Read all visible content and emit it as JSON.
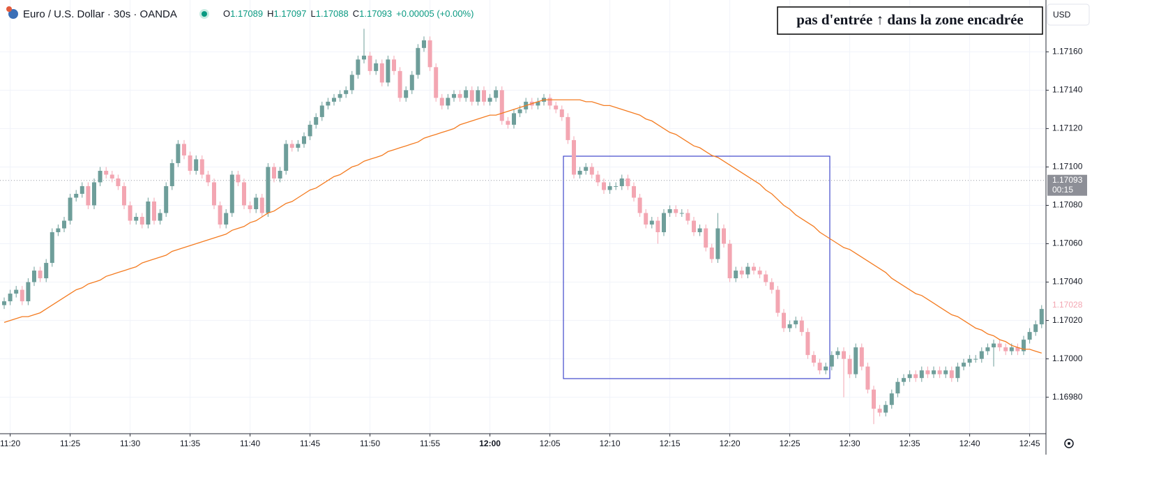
{
  "chart_data": {
    "type": "candlestick",
    "title": "Euro / U.S. Dollar · 30s · OANDA",
    "readout": [
      {
        "key": "O",
        "value": "1.17089"
      },
      {
        "key": "H",
        "value": "1.17097"
      },
      {
        "key": "L",
        "value": "1.17088"
      },
      {
        "key": "C",
        "value": "1.17093"
      }
    ],
    "change": "+0.00005 (+0.00%)",
    "annotation": "pas d'entrée ↑ dans la zone encadrée",
    "currency": "USD",
    "up_color": "#6e9e9a",
    "down_color": "#f3a6b2",
    "grid": true,
    "categories": [
      null,
      "11:20",
      null,
      null,
      null,
      null,
      null,
      null,
      null,
      null,
      null,
      "11:25",
      null,
      null,
      null,
      null,
      null,
      null,
      null,
      null,
      null,
      "11:30",
      null,
      null,
      null,
      null,
      null,
      null,
      null,
      null,
      null,
      "11:35",
      null,
      null,
      null,
      null,
      null,
      null,
      null,
      null,
      null,
      "11:40",
      null,
      null,
      null,
      null,
      null,
      null,
      null,
      null,
      null,
      "11:45",
      null,
      null,
      null,
      null,
      null,
      null,
      null,
      null,
      null,
      "11:50",
      null,
      null,
      null,
      null,
      null,
      null,
      null,
      null,
      null,
      "11:55",
      null,
      null,
      null,
      null,
      null,
      null,
      null,
      null,
      null,
      "12:00",
      null,
      null,
      null,
      null,
      null,
      null,
      null,
      null,
      null,
      "12:05",
      null,
      null,
      null,
      null,
      null,
      null,
      null,
      null,
      null,
      "12:10",
      null,
      null,
      null,
      null,
      null,
      null,
      null,
      null,
      null,
      "12:15",
      null,
      null,
      null,
      null,
      null,
      null,
      null,
      null,
      null,
      "12:20",
      null,
      null,
      null,
      null,
      null,
      null,
      null,
      null,
      null,
      "12:25",
      null,
      null,
      null,
      null,
      null,
      null,
      null,
      null,
      null,
      "12:30",
      null,
      null,
      null,
      null,
      null,
      null,
      null,
      null,
      null,
      "12:35",
      null,
      null,
      null,
      null,
      null,
      null,
      null,
      null,
      null,
      "12:40",
      null,
      null,
      null,
      null,
      null,
      null,
      null,
      null,
      null,
      "12:45",
      null,
      null
    ],
    "open": [
      1.17028,
      1.1703,
      1.17034,
      1.17036,
      1.1703,
      1.1704,
      1.17046,
      1.17042,
      1.1705,
      1.17066,
      1.17068,
      1.17072,
      1.17084,
      1.17086,
      1.1709,
      1.1708,
      1.17092,
      1.17098,
      1.17096,
      1.17094,
      1.1709,
      1.1708,
      1.17072,
      1.17074,
      1.1707,
      1.17082,
      1.17072,
      1.17076,
      1.1709,
      1.17102,
      1.17112,
      1.17106,
      1.17098,
      1.17104,
      1.17096,
      1.17092,
      1.1708,
      1.1707,
      1.17076,
      1.17096,
      1.17092,
      1.1708,
      1.17078,
      1.17084,
      1.17076,
      1.171,
      1.17094,
      1.17098,
      1.17112,
      1.1711,
      1.17112,
      1.17116,
      1.17122,
      1.17126,
      1.17132,
      1.17134,
      1.17136,
      1.17138,
      1.1714,
      1.17148,
      1.17156,
      1.17158,
      1.1715,
      1.17154,
      1.17144,
      1.17156,
      1.1715,
      1.17136,
      1.1714,
      1.17148,
      1.17162,
      1.17166,
      1.17152,
      1.17136,
      1.17132,
      1.17136,
      1.17138,
      1.17136,
      1.1714,
      1.17134,
      1.1714,
      1.17134,
      1.17136,
      1.1714,
      1.17124,
      1.17122,
      1.17128,
      1.1713,
      1.17134,
      1.17132,
      1.17134,
      1.17136,
      1.17132,
      1.1713,
      1.17126,
      1.17114,
      1.17096,
      1.17098,
      1.171,
      1.17096,
      1.17092,
      1.17088,
      1.1709,
      1.1709,
      1.17094,
      1.1709,
      1.17084,
      1.17076,
      1.1707,
      1.17072,
      1.17066,
      1.17076,
      1.17078,
      1.17076,
      1.17076,
      1.17072,
      1.17066,
      1.17068,
      1.17058,
      1.17052,
      1.17068,
      1.1706,
      1.17042,
      1.17046,
      1.17044,
      1.17048,
      1.17046,
      1.17044,
      1.1704,
      1.17036,
      1.17024,
      1.17016,
      1.17018,
      1.1702,
      1.17014,
      1.17002,
      1.16998,
      1.16994,
      1.16996,
      1.17002,
      1.17004,
      1.17,
      1.16992,
      1.17006,
      1.16996,
      1.16984,
      1.16974,
      1.16972,
      1.16976,
      1.16982,
      1.16988,
      1.1699,
      1.16992,
      1.1699,
      1.16994,
      1.16992,
      1.16994,
      1.16992,
      1.16994,
      1.1699,
      1.16996,
      1.16998,
      1.17,
      1.17,
      1.17004,
      1.17006,
      1.17008,
      1.17006,
      1.17004,
      1.17006,
      1.17004,
      1.1701,
      1.17014,
      1.17018
    ],
    "high": [
      1.17032,
      1.17036,
      1.17038,
      1.17038,
      1.17042,
      1.17048,
      1.17048,
      1.17052,
      1.17068,
      1.1707,
      1.17074,
      1.17086,
      1.17088,
      1.17092,
      1.17092,
      1.17094,
      1.171,
      1.171,
      1.17098,
      1.17096,
      1.17092,
      1.17082,
      1.17076,
      1.17076,
      1.17084,
      1.17084,
      1.17078,
      1.17092,
      1.17104,
      1.17114,
      1.17114,
      1.17108,
      1.17106,
      1.17106,
      1.17098,
      1.17094,
      1.17082,
      1.17078,
      1.17098,
      1.17098,
      1.17094,
      1.17082,
      1.17086,
      1.17086,
      1.17102,
      1.17102,
      1.171,
      1.17114,
      1.17114,
      1.17114,
      1.17118,
      1.17124,
      1.17128,
      1.17134,
      1.17136,
      1.17138,
      1.1714,
      1.17142,
      1.1715,
      1.17158,
      1.17172,
      1.1716,
      1.17156,
      1.17156,
      1.17158,
      1.17158,
      1.17152,
      1.17142,
      1.1715,
      1.17164,
      1.17168,
      1.17168,
      1.17154,
      1.17138,
      1.17138,
      1.1714,
      1.1714,
      1.17142,
      1.17142,
      1.17142,
      1.17142,
      1.17138,
      1.17142,
      1.17142,
      1.17126,
      1.1713,
      1.17132,
      1.17136,
      1.17136,
      1.17136,
      1.17138,
      1.17138,
      1.17134,
      1.17132,
      1.17128,
      1.17116,
      1.171,
      1.17102,
      1.17102,
      1.17098,
      1.17094,
      1.17092,
      1.17092,
      1.17096,
      1.17096,
      1.17092,
      1.17086,
      1.17078,
      1.17074,
      1.17074,
      1.17078,
      1.1708,
      1.1708,
      1.17078,
      1.17078,
      1.17074,
      1.1707,
      1.1707,
      1.1706,
      1.17076,
      1.1707,
      1.17062,
      1.17048,
      1.17048,
      1.1705,
      1.1705,
      1.17048,
      1.17046,
      1.17042,
      1.17038,
      1.17026,
      1.1702,
      1.17022,
      1.17022,
      1.17016,
      1.17004,
      1.17,
      1.16998,
      1.17004,
      1.17006,
      1.17006,
      1.17002,
      1.17008,
      1.17008,
      1.16998,
      1.16986,
      1.16976,
      1.16978,
      1.16984,
      1.1699,
      1.16992,
      1.16994,
      1.16994,
      1.16996,
      1.16996,
      1.16996,
      1.16996,
      1.16996,
      1.16996,
      1.16998,
      1.17,
      1.17002,
      1.17002,
      1.17006,
      1.17008,
      1.1701,
      1.1701,
      1.17008,
      1.17008,
      1.17008,
      1.17012,
      1.17016,
      1.1702,
      1.17028
    ],
    "low": [
      1.17026,
      1.17028,
      1.17032,
      1.17028,
      1.17028,
      1.17038,
      1.1704,
      1.1704,
      1.17048,
      1.17064,
      1.17066,
      1.1707,
      1.17082,
      1.17084,
      1.17078,
      1.17078,
      1.1709,
      1.17094,
      1.17092,
      1.17088,
      1.17078,
      1.1707,
      1.1707,
      1.17068,
      1.17068,
      1.1707,
      1.1707,
      1.17074,
      1.17088,
      1.171,
      1.17104,
      1.17096,
      1.17096,
      1.17094,
      1.1709,
      1.17078,
      1.17068,
      1.17068,
      1.17074,
      1.1709,
      1.17078,
      1.17076,
      1.17076,
      1.17074,
      1.17074,
      1.17092,
      1.17092,
      1.17096,
      1.17108,
      1.17108,
      1.1711,
      1.17114,
      1.1712,
      1.17124,
      1.1713,
      1.17132,
      1.17134,
      1.17136,
      1.17138,
      1.17146,
      1.17154,
      1.17148,
      1.17148,
      1.17142,
      1.17142,
      1.17148,
      1.17134,
      1.17134,
      1.17138,
      1.17146,
      1.1716,
      1.1715,
      1.17134,
      1.1713,
      1.1713,
      1.17134,
      1.17134,
      1.17134,
      1.17132,
      1.17132,
      1.17132,
      1.17132,
      1.17134,
      1.17122,
      1.1712,
      1.1712,
      1.17126,
      1.17128,
      1.1713,
      1.1713,
      1.17132,
      1.1713,
      1.17128,
      1.17124,
      1.17112,
      1.17094,
      1.17094,
      1.17096,
      1.17094,
      1.1709,
      1.17086,
      1.17086,
      1.17088,
      1.17088,
      1.17088,
      1.17082,
      1.17074,
      1.17068,
      1.17068,
      1.1706,
      1.17064,
      1.17074,
      1.17074,
      1.17074,
      1.1707,
      1.17064,
      1.17064,
      1.17056,
      1.1705,
      1.1705,
      1.17058,
      1.1704,
      1.1704,
      1.17042,
      1.17042,
      1.17044,
      1.17042,
      1.17038,
      1.17034,
      1.17022,
      1.17014,
      1.17014,
      1.17016,
      1.17012,
      1.17,
      1.16996,
      1.16992,
      1.16992,
      1.16994,
      1.17,
      1.1698,
      1.1699,
      1.1699,
      1.16994,
      1.16982,
      1.16966,
      1.1697,
      1.1697,
      1.16974,
      1.1698,
      1.16986,
      1.16988,
      1.16988,
      1.16988,
      1.1699,
      1.1699,
      1.1699,
      1.1699,
      1.16988,
      1.16988,
      1.16994,
      1.16996,
      1.16998,
      1.16998,
      1.17002,
      1.16996,
      1.17004,
      1.17002,
      1.17002,
      1.17002,
      1.17002,
      1.17008,
      1.17012,
      1.17016
    ],
    "close": [
      1.1703,
      1.17034,
      1.17036,
      1.1703,
      1.1704,
      1.17046,
      1.17042,
      1.1705,
      1.17066,
      1.17068,
      1.17072,
      1.17084,
      1.17086,
      1.1709,
      1.1708,
      1.17092,
      1.17098,
      1.17096,
      1.17094,
      1.1709,
      1.1708,
      1.17072,
      1.17074,
      1.1707,
      1.17082,
      1.17072,
      1.17076,
      1.1709,
      1.17102,
      1.17112,
      1.17106,
      1.17098,
      1.17104,
      1.17096,
      1.17092,
      1.1708,
      1.1707,
      1.17076,
      1.17096,
      1.17092,
      1.1708,
      1.17078,
      1.17084,
      1.17076,
      1.171,
      1.17094,
      1.17098,
      1.17112,
      1.1711,
      1.17112,
      1.17116,
      1.17122,
      1.17126,
      1.17132,
      1.17134,
      1.17136,
      1.17138,
      1.1714,
      1.17148,
      1.17156,
      1.17158,
      1.1715,
      1.17154,
      1.17144,
      1.17156,
      1.1715,
      1.17136,
      1.1714,
      1.17148,
      1.17162,
      1.17166,
      1.17152,
      1.17136,
      1.17132,
      1.17136,
      1.17138,
      1.17136,
      1.1714,
      1.17134,
      1.1714,
      1.17134,
      1.17136,
      1.1714,
      1.17124,
      1.17122,
      1.17128,
      1.1713,
      1.17134,
      1.17132,
      1.17134,
      1.17136,
      1.17132,
      1.1713,
      1.17126,
      1.17114,
      1.17096,
      1.17098,
      1.171,
      1.17096,
      1.17092,
      1.17088,
      1.1709,
      1.1709,
      1.17094,
      1.1709,
      1.17084,
      1.17076,
      1.1707,
      1.17072,
      1.17066,
      1.17076,
      1.17078,
      1.17076,
      1.17076,
      1.17072,
      1.17066,
      1.17068,
      1.17058,
      1.17052,
      1.17068,
      1.1706,
      1.17042,
      1.17046,
      1.17044,
      1.17048,
      1.17046,
      1.17044,
      1.1704,
      1.17036,
      1.17024,
      1.17016,
      1.17018,
      1.1702,
      1.17014,
      1.17002,
      1.16998,
      1.16994,
      1.16996,
      1.17002,
      1.17004,
      1.17,
      1.16992,
      1.17006,
      1.16996,
      1.16984,
      1.16974,
      1.16972,
      1.16976,
      1.16982,
      1.16988,
      1.1699,
      1.16992,
      1.1699,
      1.16994,
      1.16992,
      1.16994,
      1.16992,
      1.16994,
      1.1699,
      1.16996,
      1.16998,
      1.17,
      1.17,
      1.17004,
      1.17006,
      1.17008,
      1.17006,
      1.17004,
      1.17006,
      1.17004,
      1.1701,
      1.17014,
      1.17018,
      1.17026
    ],
    "ema": {
      "color": "#f47b20",
      "values": [
        1.17019,
        1.1702,
        1.17021,
        1.17022,
        1.17022,
        1.17023,
        1.17024,
        1.17026,
        1.17028,
        1.1703,
        1.17032,
        1.17034,
        1.17036,
        1.17037,
        1.17039,
        1.1704,
        1.17041,
        1.17043,
        1.17044,
        1.17045,
        1.17046,
        1.17047,
        1.17048,
        1.1705,
        1.17051,
        1.17052,
        1.17053,
        1.17054,
        1.17056,
        1.17057,
        1.17058,
        1.17059,
        1.1706,
        1.17061,
        1.17062,
        1.17063,
        1.17064,
        1.17065,
        1.17067,
        1.17068,
        1.17069,
        1.17071,
        1.17072,
        1.17074,
        1.17076,
        1.17077,
        1.17079,
        1.17081,
        1.17082,
        1.17084,
        1.17086,
        1.17088,
        1.17089,
        1.17091,
        1.17093,
        1.17095,
        1.17096,
        1.17098,
        1.171,
        1.17101,
        1.17103,
        1.17104,
        1.17105,
        1.17106,
        1.17108,
        1.17109,
        1.1711,
        1.17111,
        1.17112,
        1.17113,
        1.17115,
        1.17116,
        1.17117,
        1.17118,
        1.17119,
        1.1712,
        1.17122,
        1.17123,
        1.17124,
        1.17125,
        1.17126,
        1.17127,
        1.17127,
        1.17128,
        1.17129,
        1.1713,
        1.17131,
        1.17132,
        1.17133,
        1.17134,
        1.17135,
        1.17135,
        1.17135,
        1.17135,
        1.17135,
        1.17135,
        1.17135,
        1.17134,
        1.17134,
        1.17133,
        1.17132,
        1.17132,
        1.17131,
        1.1713,
        1.17129,
        1.17128,
        1.17127,
        1.17125,
        1.17124,
        1.17122,
        1.1712,
        1.17118,
        1.17117,
        1.17115,
        1.17113,
        1.17111,
        1.1711,
        1.17108,
        1.17106,
        1.17105,
        1.17103,
        1.17101,
        1.17099,
        1.17097,
        1.17095,
        1.17093,
        1.17091,
        1.17088,
        1.17086,
        1.17083,
        1.1708,
        1.17078,
        1.17075,
        1.17073,
        1.17071,
        1.17069,
        1.17066,
        1.17064,
        1.17062,
        1.1706,
        1.17058,
        1.17057,
        1.17055,
        1.17053,
        1.17051,
        1.17049,
        1.17047,
        1.17045,
        1.17042,
        1.1704,
        1.17038,
        1.17036,
        1.17034,
        1.17033,
        1.17031,
        1.17029,
        1.17027,
        1.17025,
        1.17023,
        1.17022,
        1.1702,
        1.17018,
        1.17016,
        1.17015,
        1.17013,
        1.17012,
        1.1701,
        1.17009,
        1.17007,
        1.17006,
        1.17005,
        1.17005,
        1.17004,
        1.17003
      ]
    },
    "ylim": [
      1.16961,
      1.17187
    ],
    "yticks": [
      {
        "value": 1.1698,
        "label": "1.16980"
      },
      {
        "value": 1.17,
        "label": "1.17000"
      },
      {
        "value": 1.1702,
        "label": "1.17020"
      },
      {
        "value": 1.1704,
        "label": "1.17040"
      },
      {
        "value": 1.1706,
        "label": "1.17060"
      },
      {
        "value": 1.1708,
        "label": "1.17080"
      },
      {
        "value": 1.171,
        "label": "1.17100"
      },
      {
        "value": 1.1712,
        "label": "1.17120"
      },
      {
        "value": 1.1714,
        "label": "1.17140"
      },
      {
        "value": 1.1716,
        "label": "1.17160"
      }
    ],
    "price_line": {
      "value": 1.17093,
      "label": "1.17093",
      "countdown": "00:15"
    },
    "ema_label": {
      "value": 1.17028,
      "label": "1.17028"
    }
  }
}
